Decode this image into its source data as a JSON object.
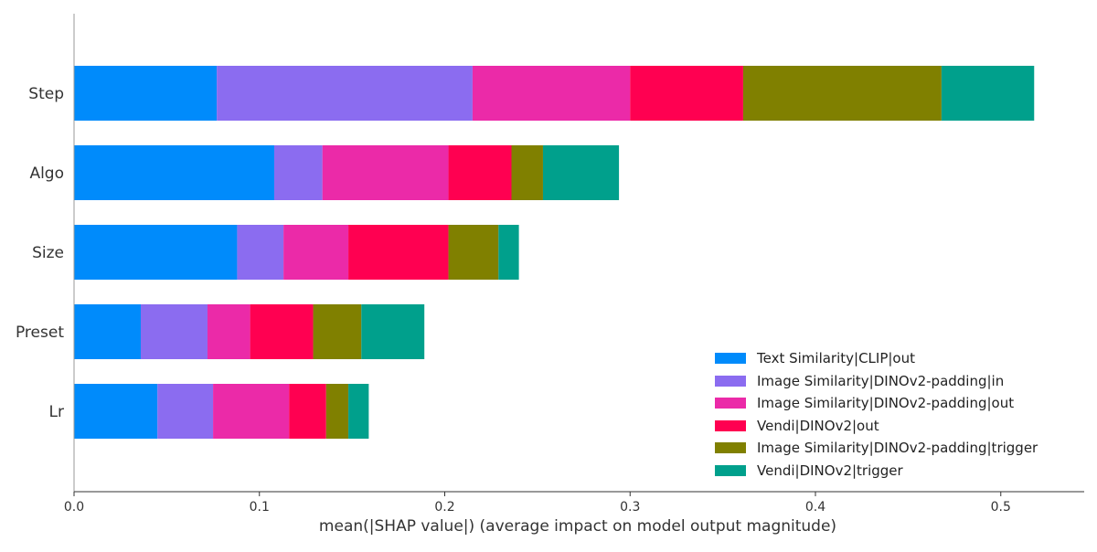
{
  "chart_data": {
    "type": "bar",
    "orientation": "horizontal",
    "stacked": true,
    "categories": [
      "Step",
      "Algo",
      "Size",
      "Preset",
      "Lr"
    ],
    "series": [
      {
        "name": "Text Similarity|CLIP|out",
        "color": "#008bfb",
        "values": [
          0.077,
          0.108,
          0.088,
          0.036,
          0.045
        ]
      },
      {
        "name": "Image Similarity|DINOv2-padding|in",
        "color": "#8b6cf0",
        "values": [
          0.138,
          0.026,
          0.025,
          0.036,
          0.03
        ]
      },
      {
        "name": "Image Similarity|DINOv2-padding|out",
        "color": "#eb2aa8",
        "values": [
          0.085,
          0.068,
          0.035,
          0.023,
          0.041
        ]
      },
      {
        "name": "Vendi|DINOv2|out",
        "color": "#ff0051",
        "values": [
          0.061,
          0.034,
          0.054,
          0.034,
          0.02
        ]
      },
      {
        "name": "Image Similarity|DINOv2-padding|trigger",
        "color": "#808000",
        "values": [
          0.107,
          0.017,
          0.027,
          0.026,
          0.012
        ]
      },
      {
        "name": "Vendi|DINOv2|trigger",
        "color": "#00a08c",
        "values": [
          0.05,
          0.041,
          0.011,
          0.034,
          0.011
        ]
      }
    ],
    "xlabel": "mean(|SHAP value|) (average impact on model output magnitude)",
    "ylabel": "",
    "xlim": [
      0,
      0.545
    ],
    "xticks": [
      0.0,
      0.1,
      0.2,
      0.3,
      0.4,
      0.5
    ],
    "xtick_labels": [
      "0.0",
      "0.1",
      "0.2",
      "0.3",
      "0.4",
      "0.5"
    ],
    "grid": false,
    "legend_position": "bottom-right"
  }
}
